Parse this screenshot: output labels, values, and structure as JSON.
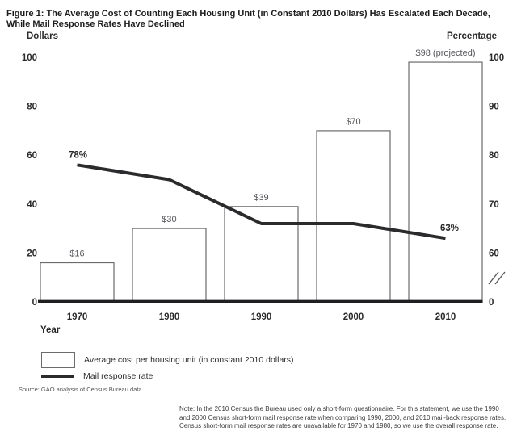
{
  "figure": {
    "title": "Figure 1: The Average Cost of Counting Each Housing Unit (in Constant 2010 Dollars) Has Escalated Each Decade, While Mail Response Rates Have Declined",
    "source": "Source: GAO analysis of Census Bureau data.",
    "note": "Note: In the 2010 Census the Bureau used only a short-form questionnaire. For this statement, we use the 1990 and 2000 Census short-form mail response rate when comparing 1990, 2000, and 2010 mail-back response rates. Census short-form mail response rates are unavailable for 1970 and 1980, so we use the overall response rate."
  },
  "chart_data": {
    "type": "bar",
    "subtype": "bar+line combo, dual axis",
    "categories": [
      "1970",
      "1980",
      "1990",
      "2000",
      "2010"
    ],
    "series": [
      {
        "name": "Average cost per housing unit (in constant 2010 dollars)",
        "type": "bar",
        "axis": "left",
        "values": [
          16,
          30,
          39,
          70,
          98
        ],
        "labels": [
          "$16",
          "$30",
          "$39",
          "$70",
          "$98 (projected)"
        ]
      },
      {
        "name": "Mail response rate",
        "type": "line",
        "axis": "right",
        "values": [
          78,
          75,
          66,
          66,
          63
        ],
        "point_labels": [
          "78%",
          null,
          null,
          null,
          "63%"
        ]
      }
    ],
    "xlabel": "Year",
    "left_axis": {
      "title": "Dollars",
      "ticks": [
        100,
        80,
        60,
        40,
        20,
        0
      ],
      "range": [
        0,
        100
      ]
    },
    "right_axis": {
      "title": "Percentage",
      "ticks": [
        100,
        90,
        80,
        70,
        60
      ],
      "zero_label": "0",
      "axis_break": true,
      "shown_range": [
        60,
        100
      ]
    },
    "grid": false,
    "legend_position": "bottom-left"
  },
  "colors": {
    "bar_fill": "#ffffff",
    "bar_border": "#6b6b6e",
    "line": "#2b2b2d",
    "baseline": "#1f1f21",
    "text_dark": "#2a2a2c",
    "text_muted": "#55555a"
  }
}
